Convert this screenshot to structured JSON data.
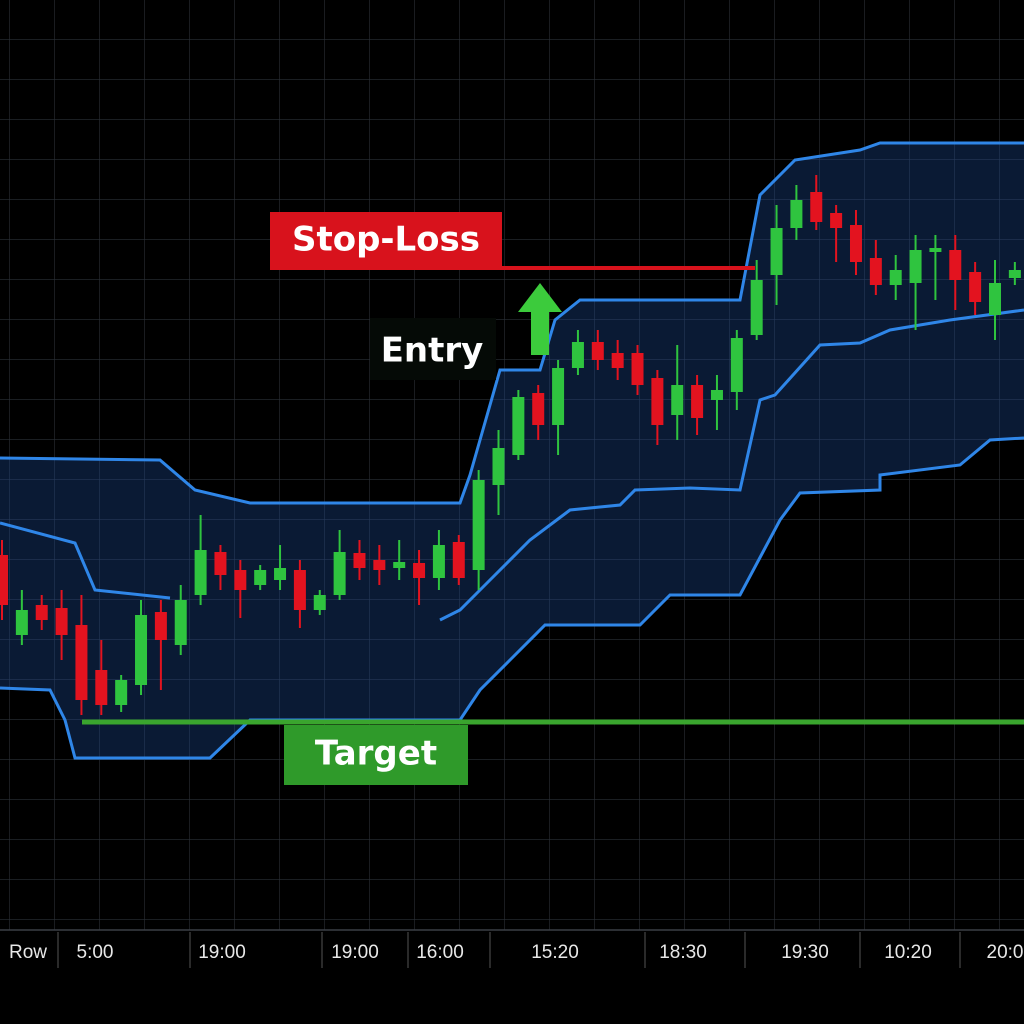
{
  "chart_data": {
    "type": "candlestick",
    "ylim": [
      0,
      93
    ],
    "grid": true,
    "up_color": "#2fc43f",
    "down_color": "#e3131f",
    "open": [
      37.5,
      29.5,
      32.5,
      32.2,
      30.5,
      26,
      22.5,
      24.5,
      31.8,
      28.5,
      33.5,
      37.8,
      36,
      34.5,
      35,
      36,
      32,
      33.5,
      37.7,
      37,
      36.2,
      36.7,
      35.2,
      38.8,
      36,
      44.5,
      47.5,
      53.7,
      50.5,
      56.2,
      58.8,
      57.7,
      57.7,
      55.2,
      51.5,
      54.5,
      53,
      53.8,
      59.5,
      65.5,
      70.2,
      73.8,
      71.7,
      70.5,
      67.2,
      64.5,
      64.7,
      67.8,
      68,
      65.8,
      61.5,
      65.2
    ],
    "high": [
      39,
      34,
      33.5,
      34,
      33.5,
      29,
      25.5,
      33,
      33,
      34.5,
      41.5,
      38.5,
      37,
      36.5,
      38.5,
      37,
      34,
      40,
      39,
      38.5,
      39,
      38,
      40,
      39.5,
      46,
      50,
      54,
      54.5,
      57,
      60,
      60,
      59,
      58.5,
      56,
      58.5,
      55.5,
      55.5,
      60,
      67,
      72.5,
      74.5,
      75.5,
      72.5,
      72,
      69,
      67.5,
      69.5,
      69.5,
      69.5,
      66.8,
      67,
      66.8
    ],
    "low": [
      31,
      28.5,
      30,
      27,
      21.5,
      21.5,
      21.8,
      23.5,
      24,
      27.5,
      32.5,
      34,
      31.2,
      34,
      34,
      30.2,
      31.5,
      33,
      35,
      34.5,
      35,
      32.5,
      34,
      34.5,
      34,
      41.5,
      47,
      49,
      47.5,
      55.5,
      56,
      55,
      53.5,
      48.5,
      49,
      49.5,
      50,
      52,
      59,
      62.5,
      69,
      70,
      66.8,
      65.5,
      63.5,
      63,
      60,
      63,
      62,
      61.5,
      59,
      64.5
    ],
    "close": [
      32.5,
      32,
      31,
      29.5,
      23,
      22.5,
      25,
      31.5,
      29,
      33,
      38,
      35.5,
      34,
      36,
      36.2,
      32,
      33.5,
      37.8,
      36.2,
      36,
      36.8,
      35.2,
      38.5,
      35.2,
      45,
      48.2,
      53.3,
      50.5,
      56.2,
      58.8,
      57,
      56.2,
      54.5,
      50.5,
      54.5,
      51.2,
      54,
      59.2,
      65,
      70.2,
      73,
      70.8,
      70.2,
      66.8,
      64.5,
      66,
      68,
      68.2,
      65,
      62.8,
      64.7,
      66
    ],
    "stop_loss": {
      "label": "Stop-Loss",
      "value": 66.2
    },
    "entry": {
      "label": "Entry"
    },
    "target": {
      "label": "Target",
      "value": 20.8
    },
    "x_labels": [
      "Row",
      "5:00",
      "19:00",
      "19:00",
      "16:00",
      "15:20",
      "18:30",
      "19:30",
      "10:20",
      "20:0"
    ]
  }
}
